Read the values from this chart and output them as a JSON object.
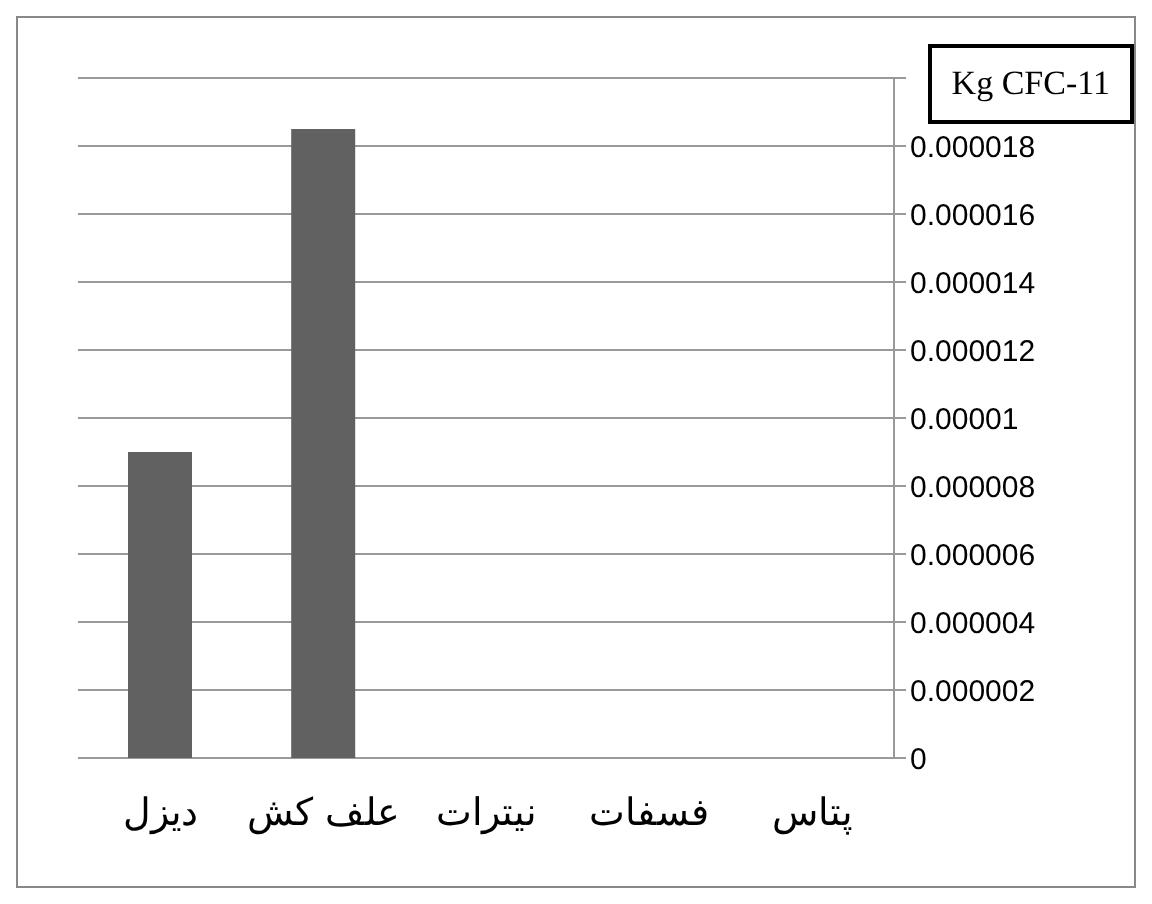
{
  "chart_data": {
    "type": "bar",
    "ylabel": "Kg CFC-11",
    "categories": [
      "دیزل",
      "علف کش",
      "نیترات",
      "فسفات",
      "پتاس"
    ],
    "values": [
      9e-06,
      1.85e-05,
      0,
      0,
      0
    ],
    "color": "#616161",
    "ylim": [
      0,
      2e-05
    ],
    "yticks": [
      0,
      {
        "value": 2e-06,
        "label": "0.000002"
      },
      {
        "value": 4e-06,
        "label": "0.000004"
      },
      {
        "value": 6e-06,
        "label": "0.000006"
      },
      {
        "value": 8e-06,
        "label": "0.000008"
      },
      {
        "value": 1e-05,
        "label": "0.00001"
      },
      {
        "value": 1.2e-05,
        "label": "0.000012"
      },
      {
        "value": 1.4e-05,
        "label": "0.000014"
      },
      {
        "value": 1.6e-05,
        "label": "0.000016"
      },
      {
        "value": 1.8e-05,
        "label": "0.000018"
      },
      {
        "value": 2e-05,
        "label": null
      }
    ],
    "grid": "y"
  }
}
